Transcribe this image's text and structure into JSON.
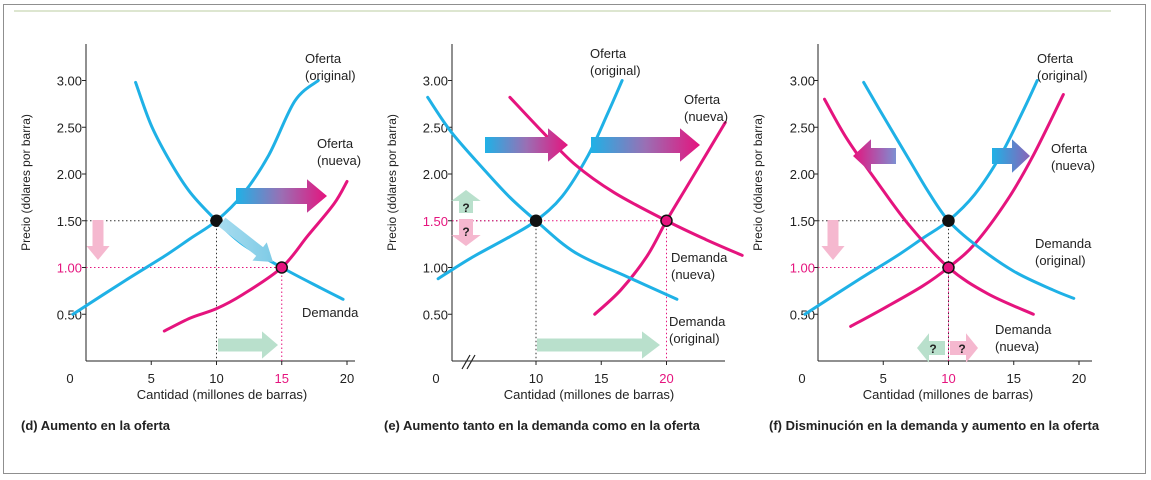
{
  "colors": {
    "supply": "#1fb1e6",
    "new": "#e5147e",
    "axis": "#222222",
    "guide": "#333333",
    "shift_arrow_light": "#b9e0cc",
    "price_arrow": "#f5b8cf"
  },
  "common": {
    "y_ticks": [
      "3.00",
      "2.50",
      "2.00",
      "1.50",
      "1.00",
      "0.50"
    ],
    "y_label": "Precio (dólares por barra)",
    "x_label": "Cantidad (millones de barras)",
    "origin": "0"
  },
  "captions": {
    "d": "(d) Aumento en la oferta",
    "e": "(e) Aumento tanto en la demanda como en la oferta",
    "f": "(f) Disminución en la demanda y aumento en la oferta"
  },
  "chart_data": [
    {
      "type": "line",
      "panel": "d",
      "x_ticks": [
        "5",
        "10",
        "15",
        "20"
      ],
      "xlim": [
        0,
        21
      ],
      "ylim": [
        0,
        3.3
      ],
      "series": [
        {
          "name": "Oferta (original)",
          "label1": "Oferta",
          "label2": "(original)",
          "color": "#1fb1e6",
          "points": [
            [
              -1,
              0.5
            ],
            [
              3,
              0.86
            ],
            [
              6,
              1.12
            ],
            [
              8,
              1.31
            ],
            [
              10,
              1.5
            ],
            [
              12,
              1.78
            ],
            [
              14,
              2.2
            ],
            [
              16,
              2.78
            ],
            [
              17.8,
              3.0
            ]
          ]
        },
        {
          "name": "Oferta (nueva)",
          "label1": "Oferta",
          "label2": "(nueva)",
          "color": "#e5147e",
          "points": [
            [
              6,
              0.32
            ],
            [
              8,
              0.46
            ],
            [
              10,
              0.56
            ],
            [
              12,
              0.71
            ],
            [
              15,
              1.0
            ],
            [
              17,
              1.34
            ],
            [
              19,
              1.68
            ],
            [
              20,
              1.92
            ]
          ]
        },
        {
          "name": "Demanda",
          "label1": "Demanda",
          "label2": "",
          "color": "#1fb1e6",
          "points": [
            [
              3.8,
              2.98
            ],
            [
              5,
              2.52
            ],
            [
              6.5,
              2.12
            ],
            [
              8,
              1.8
            ],
            [
              10,
              1.5
            ],
            [
              12,
              1.25
            ],
            [
              15,
              1.0
            ],
            [
              18,
              0.78
            ],
            [
              19.7,
              0.66
            ]
          ]
        }
      ],
      "equilibria": [
        {
          "x": 10,
          "y": 1.5,
          "fill": "#111111"
        },
        {
          "x": 15,
          "y": 1.0,
          "fill": "#e5147e"
        }
      ],
      "x_markers": [
        {
          "x": 10,
          "label": "10",
          "color": "#222222"
        },
        {
          "x": 15,
          "label": "15",
          "color": "#e5147e"
        }
      ],
      "y_markers": [
        {
          "y": 1.5,
          "label": "1.50",
          "color": "#222222"
        },
        {
          "y": 1.0,
          "label": "1.00",
          "color": "#e5147e"
        }
      ],
      "question_marks": []
    },
    {
      "type": "line",
      "panel": "e",
      "x_ticks": [
        "10",
        "15",
        "20"
      ],
      "axis_break": true,
      "xlim": [
        0,
        26
      ],
      "ylim": [
        0,
        3.3
      ],
      "series": [
        {
          "name": "Oferta (original)",
          "label1": "Oferta",
          "label2": "(original)",
          "color": "#1fb1e6",
          "points": [
            [
              2.5,
              0.88
            ],
            [
              5,
              1.1
            ],
            [
              8,
              1.33
            ],
            [
              10,
              1.5
            ],
            [
              12,
              1.76
            ],
            [
              14,
              2.2
            ],
            [
              15.5,
              2.65
            ],
            [
              16.6,
              3.0
            ]
          ]
        },
        {
          "name": "Oferta (nueva)",
          "label1": "Oferta",
          "label2": "(nueva)",
          "color": "#e5147e",
          "points": [
            [
              14.5,
              0.5
            ],
            [
              16.5,
              0.76
            ],
            [
              18.5,
              1.12
            ],
            [
              20,
              1.5
            ],
            [
              21.5,
              1.85
            ],
            [
              23,
              2.2
            ],
            [
              24.5,
              2.55
            ]
          ]
        },
        {
          "name": "Demanda (nueva)",
          "label1": "Demanda",
          "label2": "(nueva)",
          "color": "#e5147e",
          "points": [
            [
              8,
              2.82
            ],
            [
              10.5,
              2.45
            ],
            [
              13,
              2.1
            ],
            [
              16,
              1.8
            ],
            [
              20,
              1.5
            ],
            [
              23,
              1.3
            ],
            [
              25.8,
              1.13
            ]
          ]
        },
        {
          "name": "Demanda (original)",
          "label1": "Demanda",
          "label2": "(original)",
          "color": "#1fb1e6",
          "points": [
            [
              1.7,
              2.82
            ],
            [
              3.5,
              2.45
            ],
            [
              6,
              2.05
            ],
            [
              8,
              1.75
            ],
            [
              10,
              1.5
            ],
            [
              13,
              1.16
            ],
            [
              17,
              0.9
            ],
            [
              20.8,
              0.66
            ]
          ]
        }
      ],
      "equilibria": [
        {
          "x": 10,
          "y": 1.5,
          "fill": "#111111"
        },
        {
          "x": 20,
          "y": 1.5,
          "fill": "#e5147e"
        }
      ],
      "x_markers": [
        {
          "x": 10,
          "label": "10",
          "color": "#222222"
        },
        {
          "x": 20,
          "label": "20",
          "color": "#e5147e"
        }
      ],
      "y_markers": [
        {
          "y": 1.5,
          "label": "1.50",
          "color": "#e5147e"
        }
      ],
      "question_marks": [
        "?",
        "?"
      ]
    },
    {
      "type": "line",
      "panel": "f",
      "x_ticks": [
        "5",
        "10",
        "15",
        "20"
      ],
      "xlim": [
        0,
        21
      ],
      "ylim": [
        0,
        3.3
      ],
      "series": [
        {
          "name": "Oferta (original)",
          "label1": "Oferta",
          "label2": "(original)",
          "color": "#1fb1e6",
          "points": [
            [
              -1,
              0.5
            ],
            [
              3,
              0.86
            ],
            [
              6,
              1.12
            ],
            [
              8,
              1.31
            ],
            [
              10,
              1.5
            ],
            [
              12,
              1.78
            ],
            [
              14,
              2.2
            ],
            [
              15.8,
              2.7
            ],
            [
              16.8,
              3.0
            ]
          ]
        },
        {
          "name": "Oferta (nueva)",
          "label1": "Oferta",
          "label2": "(nueva)",
          "color": "#e5147e",
          "points": [
            [
              2.5,
              0.37
            ],
            [
              5,
              0.56
            ],
            [
              8,
              0.8
            ],
            [
              10,
              1.0
            ],
            [
              12,
              1.25
            ],
            [
              14.5,
              1.72
            ],
            [
              16.5,
              2.2
            ],
            [
              18.8,
              2.85
            ]
          ]
        },
        {
          "name": "Demanda (original)",
          "label1": "Demanda",
          "label2": "(original)",
          "color": "#1fb1e6",
          "points": [
            [
              3.5,
              2.98
            ],
            [
              5,
              2.62
            ],
            [
              7,
              2.15
            ],
            [
              8.5,
              1.8
            ],
            [
              10,
              1.5
            ],
            [
              12,
              1.25
            ],
            [
              15,
              0.96
            ],
            [
              18,
              0.76
            ],
            [
              19.6,
              0.67
            ]
          ]
        },
        {
          "name": "Demanda (nueva)",
          "label1": "Demanda",
          "label2": "(nueva)",
          "color": "#e5147e",
          "points": [
            [
              0.5,
              2.8
            ],
            [
              2.2,
              2.38
            ],
            [
              4.5,
              1.92
            ],
            [
              7,
              1.45
            ],
            [
              10,
              1.0
            ],
            [
              13,
              0.72
            ],
            [
              16.5,
              0.5
            ]
          ]
        }
      ],
      "equilibria": [
        {
          "x": 10,
          "y": 1.5,
          "fill": "#111111"
        },
        {
          "x": 10,
          "y": 1.0,
          "fill": "#e5147e"
        }
      ],
      "x_markers": [
        {
          "x": 10,
          "label": "10",
          "color": "#e5147e"
        }
      ],
      "y_markers": [
        {
          "y": 1.5,
          "label": "1.50",
          "color": "#222222"
        },
        {
          "y": 1.0,
          "label": "1.00",
          "color": "#e5147e"
        }
      ],
      "question_marks": [
        "?",
        "?"
      ]
    }
  ]
}
